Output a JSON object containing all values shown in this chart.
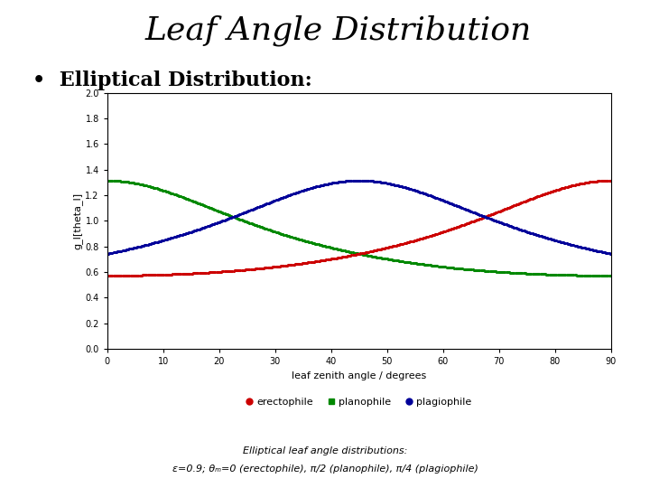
{
  "title": "Leaf Angle Distribution",
  "subtitle": "Elliptical Distribution:",
  "xlabel": "leaf zenith angle / degrees",
  "ylabel": "g_l[theta_l]",
  "xlim": [
    0,
    90
  ],
  "ylim": [
    0.0,
    2.0
  ],
  "yticks": [
    0.0,
    0.2,
    0.4,
    0.6,
    0.8,
    1.0,
    1.2,
    1.4,
    1.6,
    1.8,
    2.0
  ],
  "xticks": [
    0,
    10,
    20,
    30,
    40,
    50,
    60,
    70,
    80,
    90
  ],
  "epsilon": 0.9,
  "theta_m_erectophile": 0.0,
  "theta_m_planophile": 1.5707963267948966,
  "theta_m_plagiophile": 0.7853981633974483,
  "colors": {
    "erectophile": "#cc0000",
    "planophile": "#008800",
    "plagiophile": "#000099"
  },
  "legend_labels": [
    "erectophile",
    "planophile",
    "plagiophile"
  ],
  "annotation_line1": "Elliptical leaf angle distributions:",
  "annotation_line2": "ε=0.9; θₘ=0 (erectophile), π/2 (planophile), π/4 (plagiophile)",
  "title_fontsize": 26,
  "subtitle_fontsize": 16,
  "axis_fontsize": 8,
  "tick_fontsize": 7,
  "legend_fontsize": 8,
  "annotation_fontsize": 8,
  "markersize": 2.5,
  "background_color": "#ffffff"
}
